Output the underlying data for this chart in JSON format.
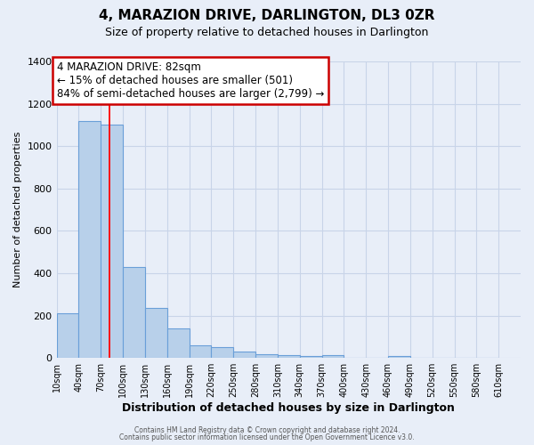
{
  "title": "4, MARAZION DRIVE, DARLINGTON, DL3 0ZR",
  "subtitle": "Size of property relative to detached houses in Darlington",
  "xlabel": "Distribution of detached houses by size in Darlington",
  "ylabel": "Number of detached properties",
  "bin_labels": [
    "10sqm",
    "40sqm",
    "70sqm",
    "100sqm",
    "130sqm",
    "160sqm",
    "190sqm",
    "220sqm",
    "250sqm",
    "280sqm",
    "310sqm",
    "340sqm",
    "370sqm",
    "400sqm",
    "430sqm",
    "460sqm",
    "490sqm",
    "520sqm",
    "550sqm",
    "580sqm",
    "610sqm"
  ],
  "bin_edges": [
    10,
    40,
    70,
    100,
    130,
    160,
    190,
    220,
    250,
    280,
    310,
    340,
    370,
    400,
    430,
    460,
    490,
    520,
    550,
    580,
    610
  ],
  "bar_values": [
    210,
    1120,
    1100,
    430,
    235,
    140,
    60,
    50,
    30,
    18,
    12,
    10,
    12,
    0,
    0,
    10,
    0,
    0,
    0,
    0
  ],
  "bar_color": "#b8d0ea",
  "bar_edge_color": "#6a9fd8",
  "red_line_x": 82,
  "ylim": [
    0,
    1400
  ],
  "yticks": [
    0,
    200,
    400,
    600,
    800,
    1000,
    1200,
    1400
  ],
  "annotation_title": "4 MARAZION DRIVE: 82sqm",
  "annotation_line1": "← 15% of detached houses are smaller (501)",
  "annotation_line2": "84% of semi-detached houses are larger (2,799) →",
  "footer1": "Contains HM Land Registry data © Crown copyright and database right 2024.",
  "footer2": "Contains public sector information licensed under the Open Government Licence v3.0.",
  "bg_color": "#e8eef8",
  "plot_bg_color": "#e8eef8",
  "grid_color": "#c8d4e8",
  "annotation_box_color": "#cc0000"
}
